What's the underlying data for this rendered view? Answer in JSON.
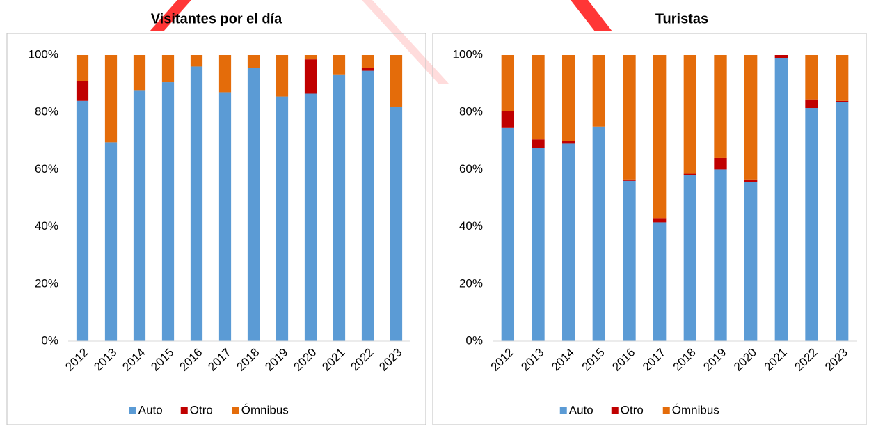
{
  "chart_data": [
    {
      "type": "stacked_bar",
      "title": "Visitantes por el día",
      "categories": [
        "2012",
        "2013",
        "2014",
        "2015",
        "2016",
        "2017",
        "2018",
        "2019",
        "2020",
        "2021",
        "2022",
        "2023"
      ],
      "series": [
        {
          "name": "Auto",
          "color": "#5b9bd5",
          "values": [
            84,
            69.5,
            87.5,
            90.5,
            96,
            87,
            95.5,
            85.5,
            86.5,
            93,
            94.5,
            82
          ]
        },
        {
          "name": "Otro",
          "color": "#c00000",
          "values": [
            7,
            0,
            0,
            0,
            0,
            0,
            0,
            0,
            12,
            0,
            1,
            0
          ]
        },
        {
          "name": "Ómnibus",
          "color": "#e46c0a",
          "values": [
            9,
            30.5,
            12.5,
            9.5,
            4,
            13,
            4.5,
            14.5,
            1.5,
            7,
            4.5,
            18
          ]
        }
      ],
      "ylim": [
        0,
        100
      ],
      "yticks": [
        {
          "value": 0,
          "label": "0%"
        },
        {
          "value": 20,
          "label": "20%"
        },
        {
          "value": 40,
          "label": "40%"
        },
        {
          "value": 60,
          "label": "60%"
        },
        {
          "value": 80,
          "label": "80%"
        },
        {
          "value": 100,
          "label": "100%"
        }
      ],
      "legend": "bottom"
    },
    {
      "type": "stacked_bar",
      "title": "Turistas",
      "categories": [
        "2012",
        "2013",
        "2014",
        "2015",
        "2016",
        "2017",
        "2018",
        "2019",
        "2020",
        "2021",
        "2022",
        "2023"
      ],
      "series": [
        {
          "name": "Auto",
          "color": "#5b9bd5",
          "values": [
            74.5,
            67.5,
            69,
            75,
            56,
            41.5,
            58,
            60,
            55.5,
            99,
            81.5,
            83.5
          ]
        },
        {
          "name": "Otro",
          "color": "#c00000",
          "values": [
            6,
            3,
            1,
            0,
            0.5,
            1.5,
            0.5,
            4,
            1,
            1,
            3,
            0.5
          ]
        },
        {
          "name": "Ómnibus",
          "color": "#e46c0a",
          "values": [
            19.5,
            29.5,
            30,
            25,
            43.5,
            57,
            41.5,
            36,
            43.5,
            0,
            15.5,
            16
          ]
        }
      ],
      "ylim": [
        0,
        100
      ],
      "yticks": [
        {
          "value": 0,
          "label": "0%"
        },
        {
          "value": 20,
          "label": "20%"
        },
        {
          "value": 40,
          "label": "40%"
        },
        {
          "value": 60,
          "label": "60%"
        },
        {
          "value": 80,
          "label": "80%"
        },
        {
          "value": 100,
          "label": "100%"
        }
      ],
      "legend": "bottom"
    }
  ]
}
